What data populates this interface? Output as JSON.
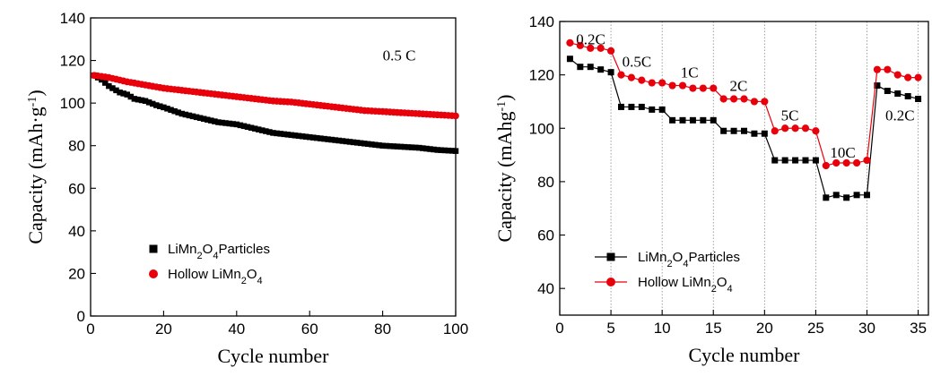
{
  "chart_data": [
    {
      "type": "scatter",
      "xlabel": "Cycle number",
      "ylabel": "Capacity (mAh·g",
      "ylabel_sup": "-1",
      "ylabel_close": ")",
      "xlim": [
        0,
        100
      ],
      "ylim": [
        0,
        140
      ],
      "xticks": [
        0,
        20,
        40,
        60,
        80,
        100
      ],
      "yticks": [
        0,
        20,
        40,
        60,
        80,
        100,
        120,
        140
      ],
      "legend_position": "bottom-left",
      "annotations": [
        {
          "text": "0.5 C",
          "x": 80,
          "y": 120
        }
      ],
      "series": [
        {
          "name_parts": [
            "LiMn",
            "2",
            "O",
            "4",
            "Particles"
          ],
          "color": "#000000",
          "marker": "square",
          "anchors": [
            [
              1,
              113
            ],
            [
              3,
              111
            ],
            [
              5,
              108
            ],
            [
              8,
              105
            ],
            [
              10,
              104
            ],
            [
              12,
              102
            ],
            [
              15,
              101
            ],
            [
              18,
              99
            ],
            [
              20,
              98
            ],
            [
              25,
              95
            ],
            [
              30,
              93
            ],
            [
              35,
              91
            ],
            [
              40,
              90
            ],
            [
              45,
              88
            ],
            [
              50,
              86
            ],
            [
              55,
              85
            ],
            [
              60,
              84
            ],
            [
              65,
              83
            ],
            [
              70,
              82
            ],
            [
              75,
              81
            ],
            [
              80,
              80
            ],
            [
              85,
              79.5
            ],
            [
              90,
              79
            ],
            [
              95,
              78
            ],
            [
              100,
              77.5
            ]
          ]
        },
        {
          "name_parts": [
            "Hollow LiMn",
            "2",
            "O",
            "4"
          ],
          "color": "#e8000b",
          "marker": "circle",
          "anchors": [
            [
              1,
              113
            ],
            [
              5,
              112
            ],
            [
              10,
              110
            ],
            [
              15,
              108.5
            ],
            [
              20,
              107
            ],
            [
              25,
              106
            ],
            [
              30,
              105
            ],
            [
              35,
              104
            ],
            [
              40,
              103
            ],
            [
              45,
              102
            ],
            [
              50,
              101
            ],
            [
              55,
              100.5
            ],
            [
              60,
              99.5
            ],
            [
              65,
              98.5
            ],
            [
              70,
              97.5
            ],
            [
              75,
              96.5
            ],
            [
              80,
              96
            ],
            [
              85,
              95.5
            ],
            [
              90,
              95
            ],
            [
              95,
              94.5
            ],
            [
              100,
              94
            ]
          ]
        }
      ]
    },
    {
      "type": "line",
      "xlabel": "Cycle number",
      "ylabel": "Capacity (mAhg",
      "ylabel_sup": "-1",
      "ylabel_close": ")",
      "xlim": [
        0,
        36
      ],
      "ylim": [
        30,
        140
      ],
      "xticks": [
        0,
        5,
        10,
        15,
        20,
        25,
        30,
        35
      ],
      "yticks": [
        40,
        60,
        80,
        100,
        120,
        140
      ],
      "vgrid": [
        5,
        10,
        15,
        20,
        25,
        30,
        35
      ],
      "legend_position": "bottom-left",
      "annotations": [
        {
          "text": "0.2C",
          "x": 1.6,
          "y": 131.5
        },
        {
          "text": "0.5C",
          "x": 6.1,
          "y": 123
        },
        {
          "text": "1C",
          "x": 11.8,
          "y": 119
        },
        {
          "text": "2C",
          "x": 16.6,
          "y": 114
        },
        {
          "text": "5C",
          "x": 21.6,
          "y": 103
        },
        {
          "text": "10C",
          "x": 26.4,
          "y": 89
        },
        {
          "text": "0.2C",
          "x": 31.8,
          "y": 103
        }
      ],
      "series": [
        {
          "name_parts": [
            "LiMn",
            "2",
            "O",
            "4",
            "Particles"
          ],
          "color": "#000000",
          "marker": "square",
          "x": [
            1,
            2,
            3,
            4,
            5,
            6,
            7,
            8,
            9,
            10,
            11,
            12,
            13,
            14,
            15,
            16,
            17,
            18,
            19,
            20,
            21,
            22,
            23,
            24,
            25,
            26,
            27,
            28,
            29,
            30,
            31,
            32,
            33,
            34,
            35
          ],
          "values": [
            126,
            123,
            123,
            122,
            121,
            108,
            108,
            108,
            107,
            107,
            103,
            103,
            103,
            103,
            103,
            99,
            99,
            99,
            98,
            98,
            88,
            88,
            88,
            88,
            88,
            74,
            75,
            74,
            75,
            75,
            116,
            114,
            113,
            112,
            111
          ]
        },
        {
          "name_parts": [
            "Hollow LiMn",
            "2",
            "O",
            "4"
          ],
          "color": "#e8000b",
          "marker": "circle",
          "x": [
            1,
            2,
            3,
            4,
            5,
            6,
            7,
            8,
            9,
            10,
            11,
            12,
            13,
            14,
            15,
            16,
            17,
            18,
            19,
            20,
            21,
            22,
            23,
            24,
            25,
            26,
            27,
            28,
            29,
            30,
            31,
            32,
            33,
            34,
            35
          ],
          "values": [
            132,
            131,
            130,
            130,
            129,
            120,
            119,
            118,
            117,
            117,
            116,
            116,
            115,
            115,
            115,
            111,
            111,
            111,
            110,
            110,
            99,
            100,
            100,
            100,
            99,
            86,
            87,
            87,
            87,
            88,
            122,
            122,
            120,
            119,
            119
          ]
        }
      ]
    }
  ]
}
